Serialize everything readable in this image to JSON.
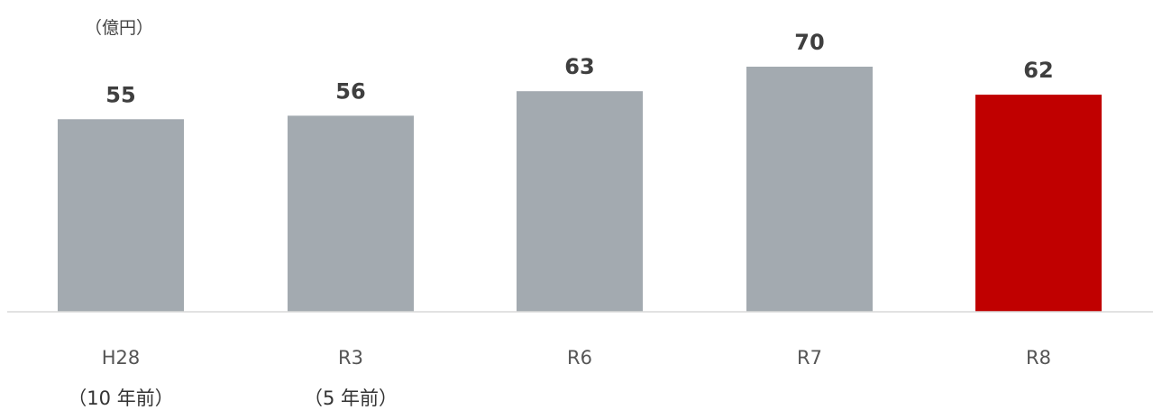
{
  "chart_data": {
    "type": "bar",
    "unit_label": "（億円）",
    "categories": [
      "H28",
      "R3",
      "R6",
      "R7",
      "R8"
    ],
    "sublabels": [
      "（10 年前）",
      "（5 年前）",
      "",
      "",
      ""
    ],
    "values": [
      55,
      56,
      63,
      70,
      62
    ],
    "ylim": [
      0,
      70
    ],
    "grid": false,
    "legend": "none",
    "colors": {
      "default_bar": "#a3aab0",
      "highlight_bar": "#c00000",
      "axis_line": "#d9d9d9"
    },
    "highlight_category": "R8"
  }
}
